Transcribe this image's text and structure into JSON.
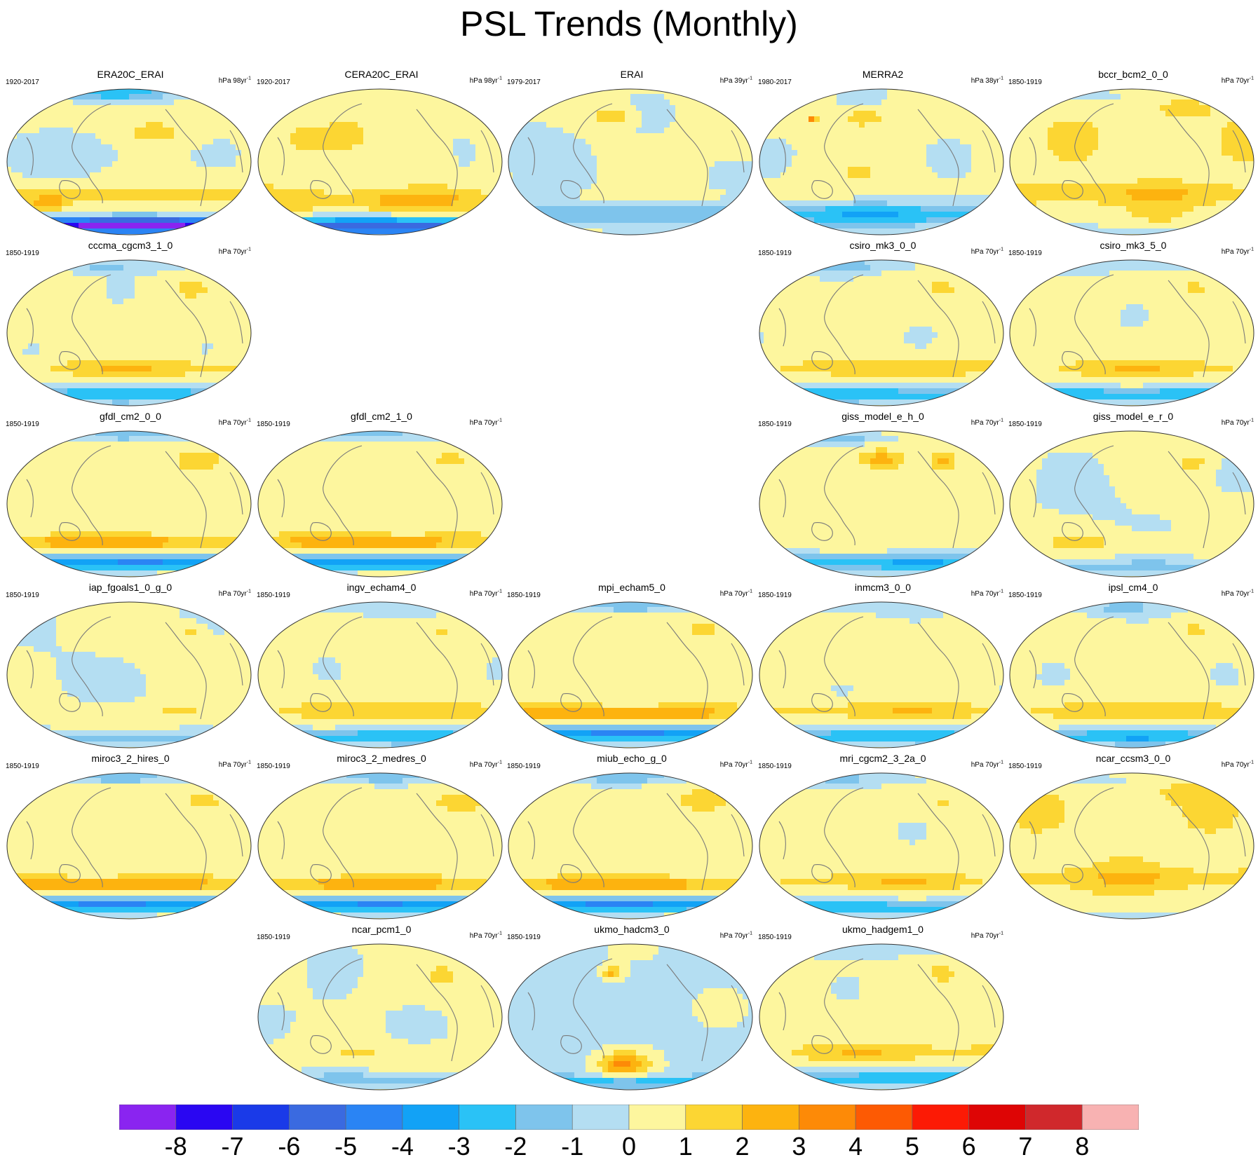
{
  "title": "PSL Trends (Monthly)",
  "chart_data": {
    "type": "map-panel-grid",
    "title": "PSL Trends (Monthly)",
    "variable": "PSL",
    "colorbar": {
      "levels": [
        -8,
        -7,
        -6,
        -5,
        -4,
        -3,
        -2,
        -1,
        0,
        1,
        2,
        3,
        4,
        5,
        6,
        7,
        8
      ],
      "tick_labels": [
        "-8",
        "-7",
        "-6",
        "-5",
        "-4",
        "-3",
        "-2",
        "-1",
        "0",
        "1",
        "2",
        "3",
        "4",
        "5",
        "6",
        "7",
        "8"
      ],
      "colors": [
        "#8a24f0",
        "#2a06f2",
        "#1a3ae8",
        "#3a6ae0",
        "#2a84f4",
        "#12a2f6",
        "#2ac2f6",
        "#7ec4ec",
        "#b4def2",
        "#fdf69e",
        "#fcd633",
        "#fdb30f",
        "#fd8a07",
        "#fd5a03",
        "#fc1a05",
        "#de0505",
        "#d0282c",
        "#f8b2b2"
      ]
    },
    "panels": [
      {
        "name": "ERA20C_ERAI",
        "period": "1920-2017",
        "units": "hPa 98yr",
        "pattern": "era20c"
      },
      {
        "name": "CERA20C_ERAI",
        "period": "1920-2017",
        "units": "hPa 98yr",
        "pattern": "cera20c"
      },
      {
        "name": "ERAI",
        "period": "1979-2017",
        "units": "hPa 39yr",
        "pattern": "erai"
      },
      {
        "name": "MERRA2",
        "period": "1980-2017",
        "units": "hPa 38yr",
        "pattern": "merra"
      },
      {
        "name": "bccr_bcm2_0_0",
        "period": "1850-1919",
        "units": "hPa 70yr",
        "pattern": "warm"
      },
      {
        "name": "cccma_cgcm3_1_0",
        "period": "1850-1919",
        "units": "hPa 70yr",
        "pattern": "std"
      },
      {
        "name": "csiro_mk3_0_0",
        "period": "1850-1919",
        "units": "hPa 70yr",
        "pattern": "std"
      },
      {
        "name": "csiro_mk3_5_0",
        "period": "1850-1919",
        "units": "hPa 70yr",
        "pattern": "std"
      },
      {
        "name": "gfdl_cm2_0_0",
        "period": "1850-1919",
        "units": "hPa 70yr",
        "pattern": "strong"
      },
      {
        "name": "gfdl_cm2_1_0",
        "period": "1850-1919",
        "units": "hPa 70yr",
        "pattern": "strong"
      },
      {
        "name": "giss_model_e_h_0",
        "period": "1850-1919",
        "units": "hPa 70yr",
        "pattern": "giss"
      },
      {
        "name": "giss_model_e_r_0",
        "period": "1850-1919",
        "units": "hPa 70yr",
        "pattern": "weak"
      },
      {
        "name": "iap_fgoals1_0_g_0",
        "period": "1850-1919",
        "units": "hPa 70yr",
        "pattern": "weak"
      },
      {
        "name": "ingv_echam4_0",
        "period": "1850-1919",
        "units": "hPa 70yr",
        "pattern": "std"
      },
      {
        "name": "mpi_echam5_0",
        "period": "1850-1919",
        "units": "hPa 70yr",
        "pattern": "strong"
      },
      {
        "name": "inmcm3_0_0",
        "period": "1850-1919",
        "units": "hPa 70yr",
        "pattern": "std"
      },
      {
        "name": "ipsl_cm4_0",
        "period": "1850-1919",
        "units": "hPa 70yr",
        "pattern": "std"
      },
      {
        "name": "miroc3_2_hires_0",
        "period": "1850-1919",
        "units": "hPa 70yr",
        "pattern": "strong"
      },
      {
        "name": "miroc3_2_medres_0",
        "period": "1850-1919",
        "units": "hPa 70yr",
        "pattern": "strong"
      },
      {
        "name": "miub_echo_g_0",
        "period": "1850-1919",
        "units": "hPa 70yr",
        "pattern": "strong"
      },
      {
        "name": "mri_cgcm2_3_2a_0",
        "period": "1850-1919",
        "units": "hPa 70yr",
        "pattern": "std"
      },
      {
        "name": "ncar_ccsm3_0_0",
        "period": "1850-1919",
        "units": "hPa 70yr",
        "pattern": "warm"
      },
      {
        "name": "ncar_pcm1_0",
        "period": "1850-1919",
        "units": "hPa 70yr",
        "pattern": "weak"
      },
      {
        "name": "ukmo_hadcm3_0",
        "period": "1850-1919",
        "units": "hPa 70yr",
        "pattern": "hadcm3"
      },
      {
        "name": "ukmo_hadgem1_0",
        "period": "1850-1919",
        "units": "hPa 70yr",
        "pattern": "std"
      }
    ]
  }
}
